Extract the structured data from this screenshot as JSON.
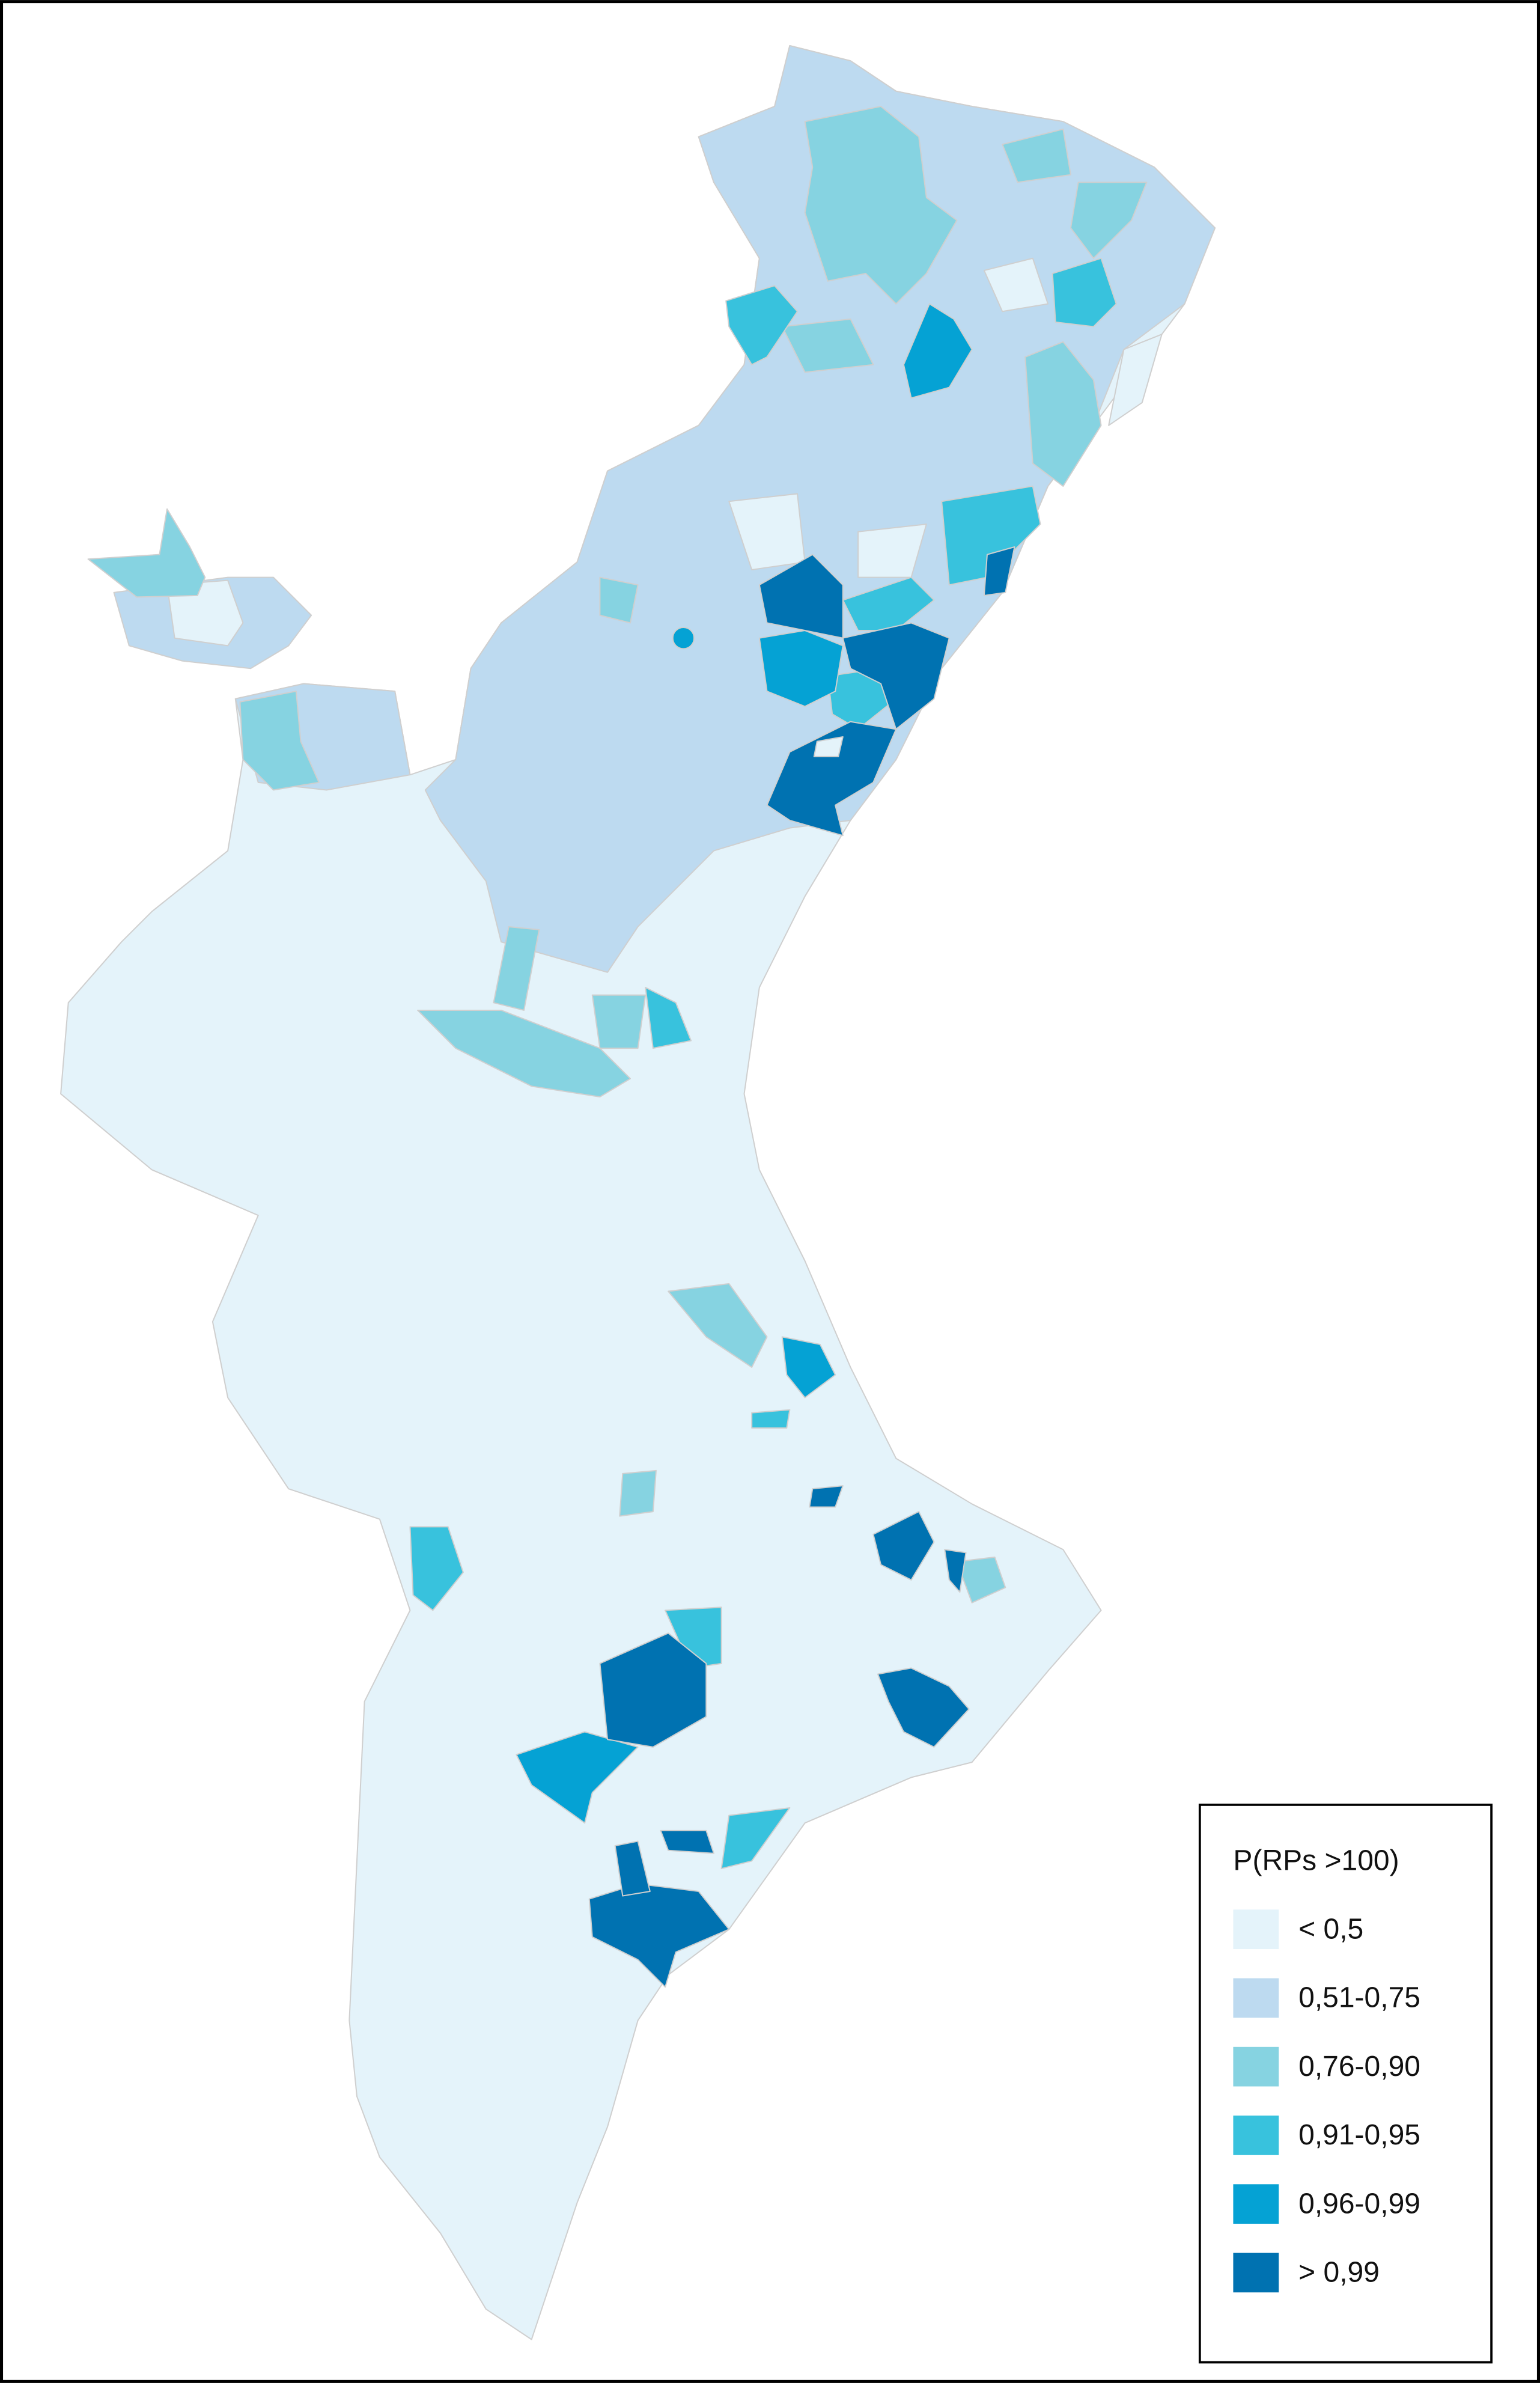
{
  "legend": {
    "title": "P(RPs >100)",
    "items": [
      {
        "label": "< 0,5",
        "color": "#e4f3fa"
      },
      {
        "label": "0,51-0,75",
        "color": "#bddaf0"
      },
      {
        "label": "0,76-0,90",
        "color": "#86d3e1"
      },
      {
        "label": "0,91-0,95",
        "color": "#38c2dd"
      },
      {
        "label": "0,96-0,99",
        "color": "#05a2d4"
      },
      {
        "label": "> 0,99",
        "color": "#0072b1"
      }
    ]
  }
}
